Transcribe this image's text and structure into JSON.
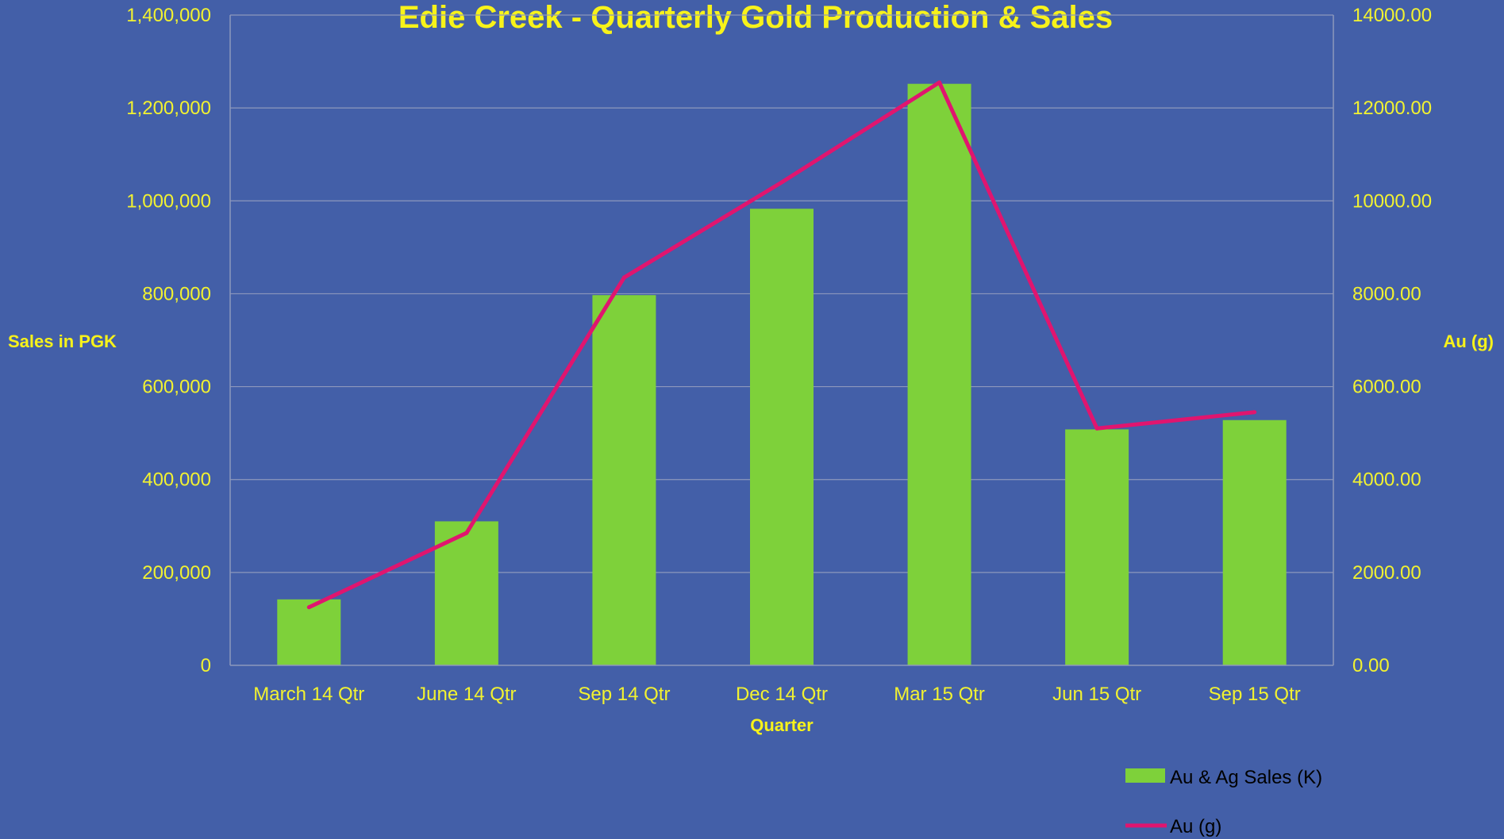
{
  "chart_data": {
    "type": "bar+line",
    "title": "Edie Creek - Quarterly Gold Production & Sales",
    "xlabel": "Quarter",
    "ylabel_left": "Sales in PGK",
    "ylabel_right": "Au (g)",
    "categories": [
      "March 14 Qtr",
      "June 14 Qtr",
      "Sep 14 Qtr",
      "Dec 14 Qtr",
      "Mar 15 Qtr",
      "Jun 15 Qtr",
      "Sep 15 Qtr"
    ],
    "ylim_left": [
      0,
      1400000
    ],
    "ylim_right": [
      0,
      14000
    ],
    "left_ticks": [
      "0",
      "200,000",
      "400,000",
      "600,000",
      "800,000",
      "1,000,000",
      "1,200,000",
      "1,400,000"
    ],
    "right_ticks": [
      "0.00",
      "2000.00",
      "4000.00",
      "6000.00",
      "8000.00",
      "10000.00",
      "12000.00",
      "14000.00"
    ],
    "series": [
      {
        "name": "Au & Ag Sales (K)",
        "type": "bar",
        "axis": "left",
        "color": "#7ED13A",
        "values": [
          142000,
          310000,
          797000,
          983000,
          1252000,
          508000,
          528000
        ]
      },
      {
        "name": "Au (g)",
        "type": "line",
        "axis": "right",
        "color": "#E0156F",
        "values": [
          1250,
          2850,
          8350,
          10400,
          12550,
          5100,
          5450
        ]
      }
    ],
    "grid": true,
    "legend_position": "bottom-right"
  }
}
